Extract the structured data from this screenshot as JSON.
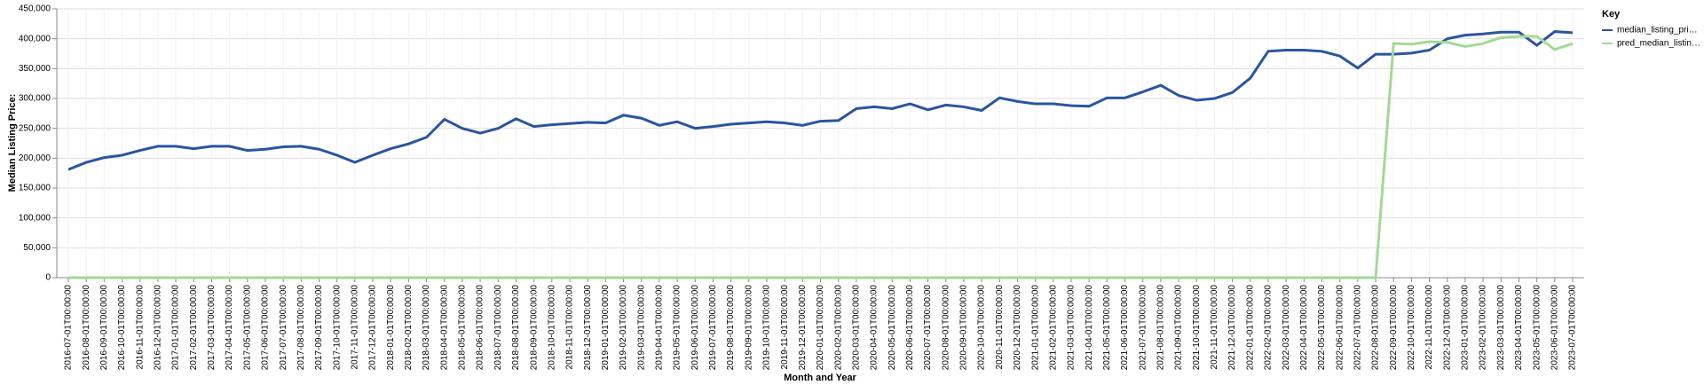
{
  "chart_data": {
    "type": "line",
    "x_label": "Month and Year",
    "y_label": "Median Listing Price:",
    "legend_title": "Key",
    "legend": "right",
    "grid": true,
    "categories": [
      "2016-07-01T00:00:00",
      "2016-08-01T00:00:00",
      "2016-09-01T00:00:00",
      "2016-10-01T00:00:00",
      "2016-11-01T00:00:00",
      "2016-12-01T00:00:00",
      "2017-01-01T00:00:00",
      "2017-02-01T00:00:00",
      "2017-03-01T00:00:00",
      "2017-04-01T00:00:00",
      "2017-05-01T00:00:00",
      "2017-06-01T00:00:00",
      "2017-07-01T00:00:00",
      "2017-08-01T00:00:00",
      "2017-09-01T00:00:00",
      "2017-10-01T00:00:00",
      "2017-11-01T00:00:00",
      "2017-12-01T00:00:00",
      "2018-01-01T00:00:00",
      "2018-02-01T00:00:00",
      "2018-03-01T00:00:00",
      "2018-04-01T00:00:00",
      "2018-05-01T00:00:00",
      "2018-06-01T00:00:00",
      "2018-07-01T00:00:00",
      "2018-08-01T00:00:00",
      "2018-09-01T00:00:00",
      "2018-10-01T00:00:00",
      "2018-11-01T00:00:00",
      "2018-12-01T00:00:00",
      "2019-01-01T00:00:00",
      "2019-02-01T00:00:00",
      "2019-03-01T00:00:00",
      "2019-04-01T00:00:00",
      "2019-05-01T00:00:00",
      "2019-06-01T00:00:00",
      "2019-07-01T00:00:00",
      "2019-08-01T00:00:00",
      "2019-09-01T00:00:00",
      "2019-10-01T00:00:00",
      "2019-11-01T00:00:00",
      "2019-12-01T00:00:00",
      "2020-01-01T00:00:00",
      "2020-02-01T00:00:00",
      "2020-03-01T00:00:00",
      "2020-04-01T00:00:00",
      "2020-05-01T00:00:00",
      "2020-06-01T00:00:00",
      "2020-07-01T00:00:00",
      "2020-08-01T00:00:00",
      "2020-09-01T00:00:00",
      "2020-10-01T00:00:00",
      "2020-11-01T00:00:00",
      "2020-12-01T00:00:00",
      "2021-01-01T00:00:00",
      "2021-02-01T00:00:00",
      "2021-03-01T00:00:00",
      "2021-04-01T00:00:00",
      "2021-05-01T00:00:00",
      "2021-06-01T00:00:00",
      "2021-07-01T00:00:00",
      "2021-08-01T00:00:00",
      "2021-09-01T00:00:00",
      "2021-10-01T00:00:00",
      "2021-11-01T00:00:00",
      "2021-12-01T00:00:00",
      "2022-01-01T00:00:00",
      "2022-02-01T00:00:00",
      "2022-03-01T00:00:00",
      "2022-04-01T00:00:00",
      "2022-05-01T00:00:00",
      "2022-06-01T00:00:00",
      "2022-07-01T00:00:00",
      "2022-08-01T00:00:00",
      "2022-09-01T00:00:00",
      "2022-10-01T00:00:00",
      "2022-11-01T00:00:00",
      "2022-12-01T00:00:00",
      "2023-01-01T00:00:00",
      "2023-02-01T00:00:00",
      "2023-03-01T00:00:00",
      "2023-04-01T00:00:00",
      "2023-05-01T00:00:00",
      "2023-06-01T00:00:00",
      "2023-07-01T00:00:00"
    ],
    "series": [
      {
        "name": "median_listing_pri…",
        "color": "#2a55a0",
        "values": [
          181000,
          193000,
          201000,
          205000,
          213000,
          220000,
          220000,
          216000,
          220000,
          220000,
          213000,
          215000,
          219000,
          220000,
          215000,
          205000,
          193000,
          205000,
          216000,
          224000,
          235000,
          265000,
          250000,
          242000,
          250000,
          266000,
          253000,
          256000,
          258000,
          260000,
          259000,
          272000,
          267000,
          255000,
          261000,
          250000,
          253000,
          257000,
          259000,
          261000,
          259000,
          255000,
          262000,
          263000,
          283000,
          286000,
          283000,
          291000,
          281000,
          289000,
          286000,
          280000,
          301000,
          295000,
          291000,
          291000,
          288000,
          287000,
          301000,
          301000,
          311000,
          322000,
          305000,
          297000,
          300000,
          310000,
          334000,
          379000,
          381000,
          381000,
          379000,
          371000,
          351000,
          374000,
          374000,
          376000,
          381000,
          400000,
          406000,
          408000,
          411000,
          411000,
          389000,
          412000,
          410000
        ]
      },
      {
        "name": "pred_median_listin…",
        "color": "#a2d996",
        "values": [
          0,
          0,
          0,
          0,
          0,
          0,
          0,
          0,
          0,
          0,
          0,
          0,
          0,
          0,
          0,
          0,
          0,
          0,
          0,
          0,
          0,
          0,
          0,
          0,
          0,
          0,
          0,
          0,
          0,
          0,
          0,
          0,
          0,
          0,
          0,
          0,
          0,
          0,
          0,
          0,
          0,
          0,
          0,
          0,
          0,
          0,
          0,
          0,
          0,
          0,
          0,
          0,
          0,
          0,
          0,
          0,
          0,
          0,
          0,
          0,
          0,
          0,
          0,
          0,
          0,
          0,
          0,
          0,
          0,
          0,
          0,
          0,
          0,
          0,
          392000,
          391000,
          395000,
          394000,
          387000,
          392000,
          402000,
          404000,
          404000,
          382000,
          392000
        ]
      }
    ],
    "ylim": [
      0,
      450000
    ],
    "yticks": [
      0,
      {
        "value": 50000,
        "label": "50,000"
      },
      {
        "value": 100000,
        "label": "100,000"
      },
      {
        "value": 150000,
        "label": "150,000"
      },
      {
        "value": 200000,
        "label": "200,000"
      },
      {
        "value": 250000,
        "label": "250,000"
      },
      {
        "value": 300000,
        "label": "300,000"
      },
      {
        "value": 350000,
        "label": "350,000"
      },
      {
        "value": 400000,
        "label": "400,000"
      },
      {
        "value": 450000,
        "label": "450,000"
      }
    ]
  }
}
